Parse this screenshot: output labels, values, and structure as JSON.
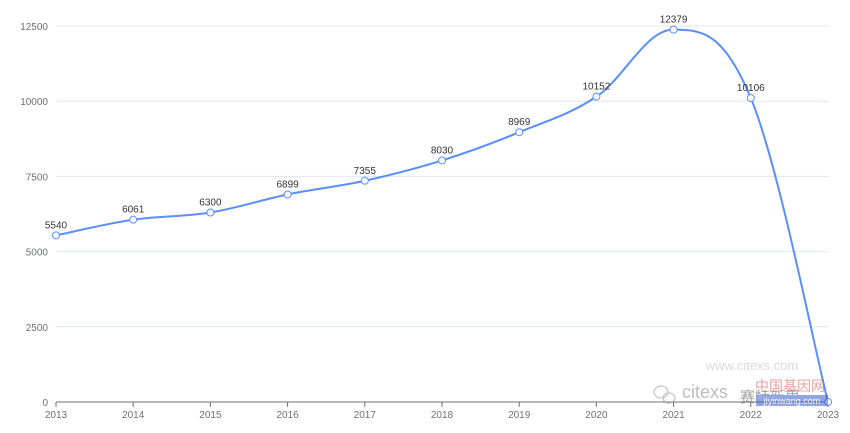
{
  "chart_data": {
    "type": "line",
    "title": "",
    "xlabel": "",
    "ylabel": "",
    "x": [
      "2013",
      "2014",
      "2015",
      "2016",
      "2017",
      "2018",
      "2019",
      "2020",
      "2021",
      "2022",
      "2023"
    ],
    "series": [
      {
        "values": [
          5540,
          6061,
          6300,
          6899,
          7355,
          8030,
          8969,
          10152,
          12379,
          10106,
          0
        ]
      }
    ],
    "data_labels": [
      "5540",
      "6061",
      "6300",
      "6899",
      "7355",
      "8030",
      "8969",
      "10152",
      "12379",
      "10106"
    ],
    "yticks": [
      0,
      2500,
      5000,
      7500,
      10000,
      12500
    ],
    "ytick_labels": [
      "0",
      "2500",
      "5000",
      "7500",
      "10000",
      "12500"
    ],
    "ylim": [
      0,
      12500
    ],
    "grid": true,
    "smooth": true,
    "line_color": "#5b8ff9"
  },
  "watermark": {
    "url": "www.citexs.com",
    "brand": "citexs",
    "brand_cn": "赛特新思",
    "site_cn": "中国基因网",
    "site_url": "jiyinwang.com"
  }
}
